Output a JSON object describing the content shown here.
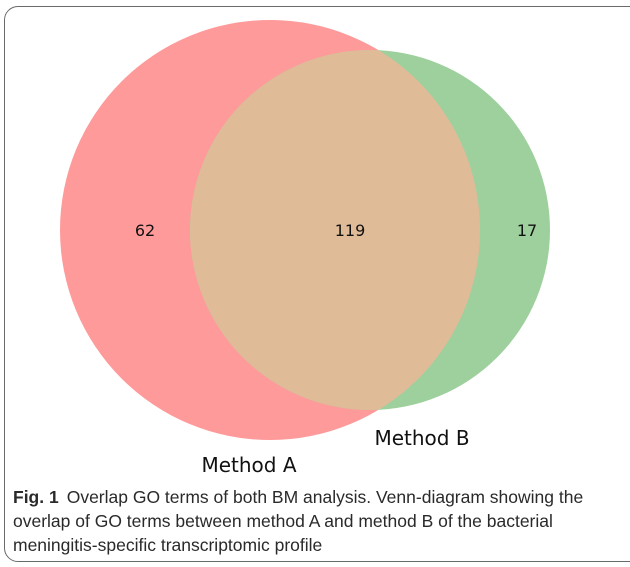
{
  "venn": {
    "sets": [
      {
        "name": "Method A",
        "color": "#ff9a9a"
      },
      {
        "name": "Method B",
        "color": "#9dd09d"
      }
    ],
    "overlap_color": "#e0bb98",
    "counts": {
      "a_only": "62",
      "both": "119",
      "b_only": "17"
    }
  },
  "caption": {
    "label": "Fig. 1",
    "text": "Overlap GO terms of both BM analysis. Venn-diagram showing the overlap of GO terms between method A and method B of the bacterial meningitis-specific transcriptomic profile"
  }
}
